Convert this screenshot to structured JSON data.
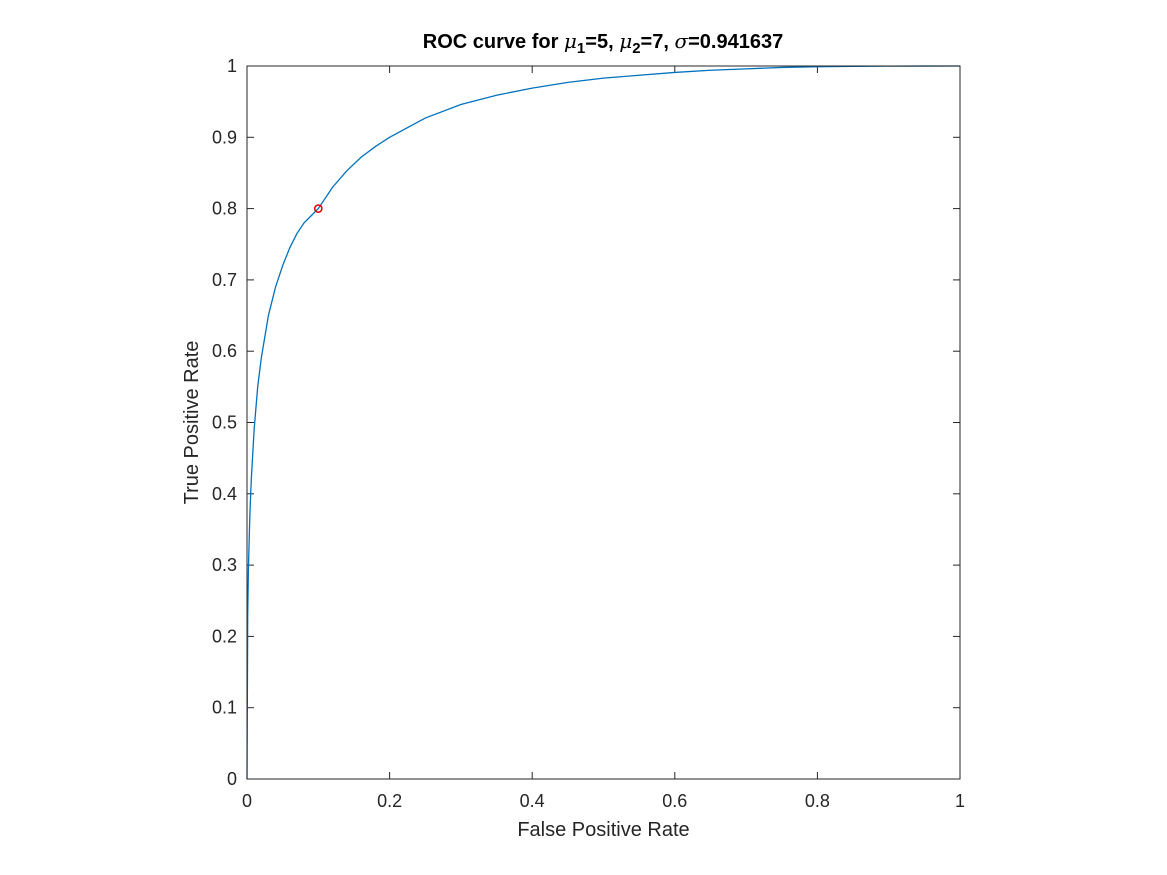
{
  "chart_data": {
    "type": "line",
    "title": {
      "prefix": "ROC curve for ",
      "mu_symbol": "μ",
      "sub1": "1",
      "mu1_value": "=5, ",
      "sub2": "2",
      "mu2_value": "=7, ",
      "sigma_symbol": "σ",
      "sigma_value": "=0.941637"
    },
    "xlabel": "False Positive Rate",
    "ylabel": "True Positive Rate",
    "xlim": [
      0,
      1
    ],
    "ylim": [
      0,
      1
    ],
    "xticks": [
      0,
      0.2,
      0.4,
      0.6,
      0.8,
      1
    ],
    "xtick_labels": [
      "0",
      "0.2",
      "0.4",
      "0.6",
      "0.8",
      "1"
    ],
    "yticks": [
      0,
      0.1,
      0.2,
      0.3,
      0.4,
      0.5,
      0.6,
      0.7,
      0.8,
      0.9,
      1
    ],
    "ytick_labels": [
      "0",
      "0.1",
      "0.2",
      "0.3",
      "0.4",
      "0.5",
      "0.6",
      "0.7",
      "0.8",
      "0.9",
      "1"
    ],
    "grid": false,
    "box": true,
    "series": [
      {
        "x": [
          0,
          0.001,
          0.002,
          0.004,
          0.006,
          0.01,
          0.015,
          0.02,
          0.03,
          0.04,
          0.05,
          0.06,
          0.07,
          0.08,
          0.09,
          0.1,
          0.12,
          0.14,
          0.16,
          0.18,
          0.2,
          0.25,
          0.3,
          0.35,
          0.4,
          0.45,
          0.5,
          0.55,
          0.6,
          0.65,
          0.7,
          0.75,
          0.8,
          0.85,
          0.9,
          0.95,
          1
        ],
        "y": [
          0,
          0.23,
          0.295,
          0.37,
          0.42,
          0.49,
          0.55,
          0.59,
          0.65,
          0.69,
          0.72,
          0.745,
          0.765,
          0.78,
          0.79,
          0.8,
          0.83,
          0.853,
          0.872,
          0.887,
          0.9,
          0.927,
          0.946,
          0.959,
          0.969,
          0.977,
          0.983,
          0.987,
          0.991,
          0.994,
          0.996,
          0.998,
          0.999,
          0.9995,
          0.9998,
          0.9999,
          1
        ],
        "color": "#0072bd"
      }
    ],
    "marker_point": {
      "x": 0.1,
      "y": 0.8,
      "color": "#e00000",
      "shape": "circle"
    }
  }
}
